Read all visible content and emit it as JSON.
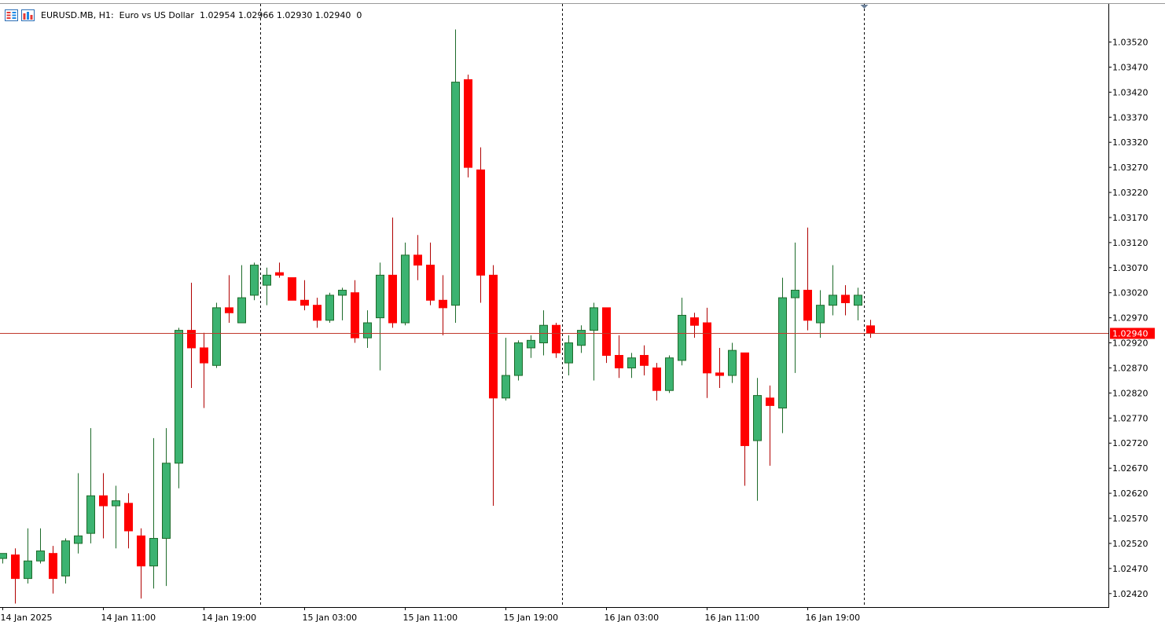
{
  "header": {
    "symbol": "EURUSD.MB",
    "timeframe": "H1",
    "description": "Euro vs US Dollar",
    "ohlc_text": "1.02954 1.02966 1.02930 1.02940",
    "volume_text": "0",
    "icons": [
      "one-click-trading-icon",
      "market-depth-icon"
    ]
  },
  "colors": {
    "bull": "#3cb371",
    "bear": "#ff0000",
    "wick": "#000000",
    "price_line": "#c0392b",
    "price_label_bg": "#ff0000",
    "price_label_text": "#ffffff",
    "grid_separator": "#000000",
    "background": "#ffffff"
  },
  "chart_data": {
    "type": "candlestick",
    "symbol": "EURUSD.MB",
    "timeframe": "H1",
    "current_price": 1.0294,
    "current_price_label": "1.02940",
    "y_ticks": [
      "1.03520",
      "1.03470",
      "1.03420",
      "1.03370",
      "1.03320",
      "1.03270",
      "1.03220",
      "1.03170",
      "1.03120",
      "1.03070",
      "1.03020",
      "1.02970",
      "1.02920",
      "1.02870",
      "1.02820",
      "1.02770",
      "1.02720",
      "1.02670",
      "1.02620",
      "1.02570",
      "1.02520",
      "1.02470",
      "1.02420"
    ],
    "ylim": [
      1.02393,
      1.03596
    ],
    "x_labels": [
      {
        "index": 0,
        "label": "14 Jan 2025"
      },
      {
        "index": 8,
        "label": "14 Jan 11:00"
      },
      {
        "index": 16,
        "label": "14 Jan 19:00"
      },
      {
        "index": 24,
        "label": "15 Jan 03:00"
      },
      {
        "index": 32,
        "label": "15 Jan 11:00"
      },
      {
        "index": 40,
        "label": "15 Jan 19:00"
      },
      {
        "index": 48,
        "label": "16 Jan 03:00"
      },
      {
        "index": 56,
        "label": "16 Jan 11:00"
      },
      {
        "index": 64,
        "label": "16 Jan 19:00"
      }
    ],
    "day_separators_after_index": [
      20.5,
      44.5,
      68.5
    ],
    "candles": [
      {
        "o": 1.0249,
        "h": 1.025,
        "l": 1.0248,
        "c": 1.025
      },
      {
        "o": 1.02497,
        "h": 1.0251,
        "l": 1.024,
        "c": 1.0245
      },
      {
        "o": 1.0245,
        "h": 1.0255,
        "l": 1.0244,
        "c": 1.02485
      },
      {
        "o": 1.02485,
        "h": 1.0255,
        "l": 1.0248,
        "c": 1.02505
      },
      {
        "o": 1.025,
        "h": 1.02515,
        "l": 1.0242,
        "c": 1.0245
      },
      {
        "o": 1.02455,
        "h": 1.0253,
        "l": 1.0244,
        "c": 1.02525
      },
      {
        "o": 1.0252,
        "h": 1.0266,
        "l": 1.025,
        "c": 1.02535
      },
      {
        "o": 1.0254,
        "h": 1.0275,
        "l": 1.0252,
        "c": 1.02615
      },
      {
        "o": 1.02615,
        "h": 1.0266,
        "l": 1.0253,
        "c": 1.02595
      },
      {
        "o": 1.02595,
        "h": 1.02635,
        "l": 1.0251,
        "c": 1.02605
      },
      {
        "o": 1.026,
        "h": 1.0262,
        "l": 1.0251,
        "c": 1.02545
      },
      {
        "o": 1.02535,
        "h": 1.0255,
        "l": 1.0241,
        "c": 1.02475
      },
      {
        "o": 1.02475,
        "h": 1.0273,
        "l": 1.0243,
        "c": 1.0253
      },
      {
        "o": 1.0253,
        "h": 1.0275,
        "l": 1.02435,
        "c": 1.0268
      },
      {
        "o": 1.0268,
        "h": 1.0295,
        "l": 1.0263,
        "c": 1.02945
      },
      {
        "o": 1.02945,
        "h": 1.0304,
        "l": 1.0283,
        "c": 1.0291
      },
      {
        "o": 1.0291,
        "h": 1.0294,
        "l": 1.0279,
        "c": 1.0288
      },
      {
        "o": 1.02875,
        "h": 1.03,
        "l": 1.0287,
        "c": 1.0299
      },
      {
        "o": 1.0299,
        "h": 1.03055,
        "l": 1.0296,
        "c": 1.0298
      },
      {
        "o": 1.0296,
        "h": 1.03075,
        "l": 1.0296,
        "c": 1.0301
      },
      {
        "o": 1.03015,
        "h": 1.0308,
        "l": 1.03005,
        "c": 1.03075
      },
      {
        "o": 1.03035,
        "h": 1.0307,
        "l": 1.02995,
        "c": 1.03055
      },
      {
        "o": 1.0306,
        "h": 1.0308,
        "l": 1.0305,
        "c": 1.03055
      },
      {
        "o": 1.0305,
        "h": 1.0305,
        "l": 1.03005,
        "c": 1.03005
      },
      {
        "o": 1.03005,
        "h": 1.03045,
        "l": 1.02985,
        "c": 1.02995
      },
      {
        "o": 1.02995,
        "h": 1.0301,
        "l": 1.0295,
        "c": 1.02965
      },
      {
        "o": 1.02965,
        "h": 1.0302,
        "l": 1.0296,
        "c": 1.03015
      },
      {
        "o": 1.03015,
        "h": 1.0303,
        "l": 1.02965,
        "c": 1.03025
      },
      {
        "o": 1.0302,
        "h": 1.03045,
        "l": 1.0292,
        "c": 1.0293
      },
      {
        "o": 1.0293,
        "h": 1.02985,
        "l": 1.0291,
        "c": 1.0296
      },
      {
        "o": 1.0297,
        "h": 1.0308,
        "l": 1.02865,
        "c": 1.03055
      },
      {
        "o": 1.03055,
        "h": 1.0317,
        "l": 1.0295,
        "c": 1.0296
      },
      {
        "o": 1.0296,
        "h": 1.0312,
        "l": 1.02955,
        "c": 1.03095
      },
      {
        "o": 1.03095,
        "h": 1.03135,
        "l": 1.03045,
        "c": 1.03075
      },
      {
        "o": 1.03075,
        "h": 1.0312,
        "l": 1.02995,
        "c": 1.03005
      },
      {
        "o": 1.03005,
        "h": 1.03055,
        "l": 1.02935,
        "c": 1.0299
      },
      {
        "o": 1.02995,
        "h": 1.03545,
        "l": 1.0296,
        "c": 1.0344
      },
      {
        "o": 1.03445,
        "h": 1.03455,
        "l": 1.0325,
        "c": 1.0327
      },
      {
        "o": 1.03265,
        "h": 1.0331,
        "l": 1.03,
        "c": 1.03055
      },
      {
        "o": 1.03055,
        "h": 1.03075,
        "l": 1.02595,
        "c": 1.0281
      },
      {
        "o": 1.0281,
        "h": 1.0293,
        "l": 1.02805,
        "c": 1.02855
      },
      {
        "o": 1.02855,
        "h": 1.02925,
        "l": 1.02845,
        "c": 1.0292
      },
      {
        "o": 1.0291,
        "h": 1.02935,
        "l": 1.0289,
        "c": 1.02925
      },
      {
        "o": 1.0292,
        "h": 1.02985,
        "l": 1.02895,
        "c": 1.02955
      },
      {
        "o": 1.02955,
        "h": 1.0296,
        "l": 1.0289,
        "c": 1.029
      },
      {
        "o": 1.0288,
        "h": 1.02935,
        "l": 1.02855,
        "c": 1.0292
      },
      {
        "o": 1.02915,
        "h": 1.02955,
        "l": 1.029,
        "c": 1.02945
      },
      {
        "o": 1.02945,
        "h": 1.03,
        "l": 1.02845,
        "c": 1.0299
      },
      {
        "o": 1.0299,
        "h": 1.0299,
        "l": 1.0288,
        "c": 1.02895
      },
      {
        "o": 1.02895,
        "h": 1.02935,
        "l": 1.0285,
        "c": 1.0287
      },
      {
        "o": 1.0287,
        "h": 1.029,
        "l": 1.0285,
        "c": 1.0289
      },
      {
        "o": 1.02895,
        "h": 1.02915,
        "l": 1.02855,
        "c": 1.02875
      },
      {
        "o": 1.0287,
        "h": 1.0288,
        "l": 1.02805,
        "c": 1.02825
      },
      {
        "o": 1.02825,
        "h": 1.02895,
        "l": 1.0282,
        "c": 1.0289
      },
      {
        "o": 1.02885,
        "h": 1.0301,
        "l": 1.02875,
        "c": 1.02975
      },
      {
        "o": 1.0297,
        "h": 1.0298,
        "l": 1.0293,
        "c": 1.02955
      },
      {
        "o": 1.0296,
        "h": 1.0299,
        "l": 1.0281,
        "c": 1.0286
      },
      {
        "o": 1.0286,
        "h": 1.0291,
        "l": 1.0283,
        "c": 1.02855
      },
      {
        "o": 1.02855,
        "h": 1.0292,
        "l": 1.0284,
        "c": 1.02905
      },
      {
        "o": 1.029,
        "h": 1.029,
        "l": 1.02635,
        "c": 1.02715
      },
      {
        "o": 1.02725,
        "h": 1.0285,
        "l": 1.02605,
        "c": 1.02815
      },
      {
        "o": 1.0281,
        "h": 1.02835,
        "l": 1.02675,
        "c": 1.02795
      },
      {
        "o": 1.0279,
        "h": 1.0305,
        "l": 1.0274,
        "c": 1.0301
      },
      {
        "o": 1.0301,
        "h": 1.0312,
        "l": 1.0286,
        "c": 1.03025
      },
      {
        "o": 1.03025,
        "h": 1.0315,
        "l": 1.02945,
        "c": 1.02965
      },
      {
        "o": 1.0296,
        "h": 1.03025,
        "l": 1.0293,
        "c": 1.02995
      },
      {
        "o": 1.02995,
        "h": 1.03075,
        "l": 1.02975,
        "c": 1.03015
      },
      {
        "o": 1.03015,
        "h": 1.03035,
        "l": 1.02975,
        "c": 1.03
      },
      {
        "o": 1.02995,
        "h": 1.0303,
        "l": 1.02965,
        "c": 1.03015
      },
      {
        "o": 1.02954,
        "h": 1.02966,
        "l": 1.0293,
        "c": 1.0294
      }
    ]
  }
}
